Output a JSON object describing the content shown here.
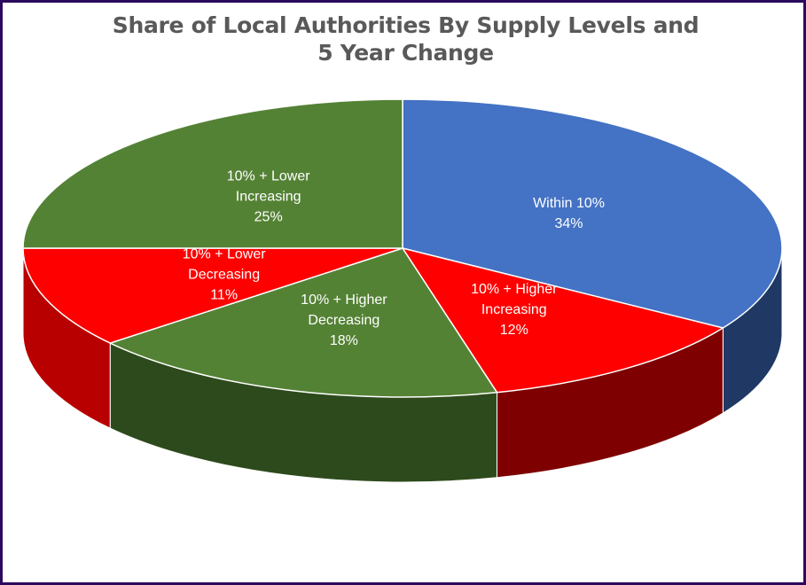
{
  "chart_data": {
    "type": "pie",
    "title_lines": [
      "Share of Local Authorities By Supply Levels and",
      "5 Year Change"
    ],
    "slices": [
      {
        "label_lines": [
          "Within 10%"
        ],
        "percent_label": "34%",
        "value": 34,
        "color": "#4472c4",
        "side_color": "#1f3864"
      },
      {
        "label_lines": [
          "10% + Higher",
          "Increasing"
        ],
        "percent_label": "12%",
        "value": 12,
        "color": "#ff0000",
        "side_color": "#7f0000"
      },
      {
        "label_lines": [
          "10% + Higher",
          "Decreasing"
        ],
        "percent_label": "18%",
        "value": 18,
        "color": "#548235",
        "side_color": "#2d4a1c"
      },
      {
        "label_lines": [
          "10% + Lower",
          "Decreasing"
        ],
        "percent_label": "11%",
        "value": 11,
        "color": "#ff0000",
        "side_color": "#b80000"
      },
      {
        "label_lines": [
          "10% + Lower",
          "Increasing"
        ],
        "percent_label": "25%",
        "value": 25,
        "color": "#548235",
        "side_color": "#3e6227"
      }
    ],
    "legend": "none"
  }
}
